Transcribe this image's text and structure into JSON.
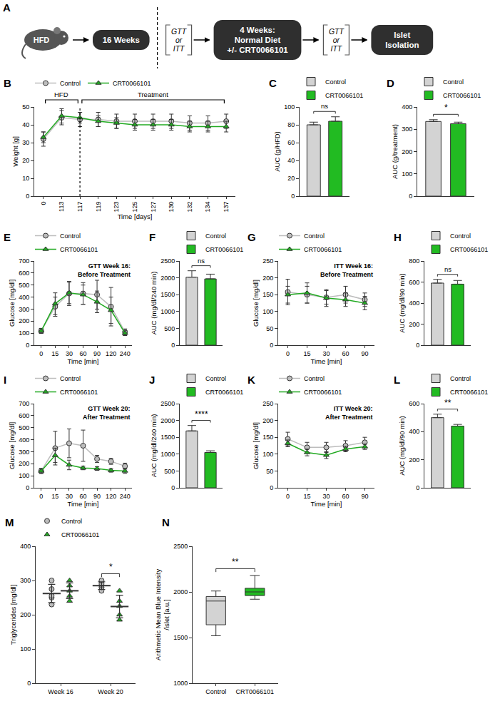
{
  "diagram": {
    "panel": "A",
    "items": [
      {
        "kind": "mouse",
        "text": "HFD"
      },
      {
        "kind": "box",
        "lines": [
          "16 Weeks"
        ]
      },
      {
        "kind": "divider"
      },
      {
        "kind": "test",
        "lines": [
          "GTT",
          "or",
          "ITT"
        ]
      },
      {
        "kind": "box",
        "lines": [
          "4 Weeks:",
          "Normal Diet",
          "+/- CRT0066101"
        ]
      },
      {
        "kind": "test",
        "lines": [
          "GTT",
          "or",
          "ITT"
        ]
      },
      {
        "kind": "box",
        "lines": [
          "Islet",
          "Isolation"
        ]
      }
    ]
  },
  "chart_data": [
    {
      "panel": "B",
      "type": "line",
      "x_title": "Time [days]",
      "y_title": "Weight [g]",
      "categories": [
        "0",
        "113",
        "117",
        "119",
        "123",
        "125",
        "127",
        "130",
        "132",
        "134",
        "137"
      ],
      "series": [
        {
          "name": "Control",
          "color": "#bdbdbd",
          "marker": "circle",
          "values": [
            32,
            44,
            43,
            43,
            42,
            42,
            42,
            42,
            41,
            41,
            42
          ],
          "errors": [
            4,
            4,
            4,
            4,
            4,
            4,
            4,
            4,
            4,
            4,
            4
          ]
        },
        {
          "name": "CRT0066101",
          "color": "#22aa22",
          "marker": "triangle",
          "values": [
            33,
            45,
            44,
            42,
            41,
            40,
            40,
            40,
            39,
            39,
            39
          ],
          "errors": [
            3,
            4,
            3,
            3,
            3,
            3,
            3,
            3,
            3,
            3,
            3
          ]
        }
      ],
      "periods": [
        {
          "label": "HFD",
          "from": "0",
          "to": "117"
        },
        {
          "label": "Treatment",
          "from": "117",
          "to": "137"
        }
      ],
      "divider": {
        "at": "117",
        "line_style": "dotted"
      },
      "ylim": [
        0,
        50
      ],
      "yticks": [
        0,
        10,
        20,
        30,
        40,
        50
      ],
      "grid": false,
      "legend": "top-left"
    },
    {
      "panel": "C",
      "type": "bar",
      "y_title": "AUC (g/HFD)",
      "series": [
        {
          "name": "Control",
          "color": "#d3d3d3",
          "values": [
            80
          ],
          "errors": [
            3
          ]
        },
        {
          "name": "CRT0066101",
          "color": "#22bb22",
          "values": [
            84
          ],
          "errors": [
            5
          ]
        }
      ],
      "significance": "ns",
      "ylim": [
        0,
        100
      ],
      "yticks": [
        0,
        20,
        40,
        60,
        80,
        100
      ],
      "grid": false,
      "legend": "top-left",
      "tick_labels": "y"
    },
    {
      "panel": "D",
      "type": "bar",
      "y_title": "AUC (g/treatment)",
      "series": [
        {
          "name": "Control",
          "color": "#d3d3d3",
          "values": [
            335
          ],
          "errors": [
            8
          ]
        },
        {
          "name": "CRT0066101",
          "color": "#22bb22",
          "values": [
            325
          ],
          "errors": [
            7
          ]
        }
      ],
      "significance": "*",
      "ylim": [
        0,
        400
      ],
      "yticks": [
        0,
        100,
        200,
        300,
        400
      ],
      "grid": false,
      "legend": "top-left",
      "tick_labels": "y"
    },
    {
      "panel": "E",
      "type": "line",
      "title": "GTT Week 16: Before Treatment",
      "x_title": "Time [min]",
      "y_title": "Glucose [mg/dl]",
      "categories": [
        "0",
        "15",
        "30",
        "60",
        "90",
        "120",
        "240"
      ],
      "series": [
        {
          "name": "Control",
          "color": "#bdbdbd",
          "marker": "circle",
          "values": [
            120,
            320,
            430,
            430,
            420,
            320,
            110
          ],
          "errors": [
            20,
            80,
            100,
            90,
            120,
            160,
            25
          ]
        },
        {
          "name": "CRT0066101",
          "color": "#22aa22",
          "marker": "triangle",
          "values": [
            118,
            345,
            435,
            420,
            360,
            290,
            100
          ],
          "errors": [
            20,
            90,
            90,
            80,
            90,
            110,
            20
          ]
        }
      ],
      "ylim": [
        0,
        700
      ],
      "yticks": [
        0,
        100,
        200,
        300,
        400,
        500,
        600,
        700
      ],
      "grid": false,
      "legend": "top-left"
    },
    {
      "panel": "F",
      "type": "bar",
      "y_title": "AUC (mg/dl/240 min)",
      "series": [
        {
          "name": "Control",
          "color": "#d3d3d3",
          "values": [
            2020
          ],
          "errors": [
            190
          ]
        },
        {
          "name": "CRT0066101",
          "color": "#22bb22",
          "values": [
            1970
          ],
          "errors": [
            140
          ]
        }
      ],
      "significance": "ns",
      "ylim": [
        0,
        2500
      ],
      "yticks": [
        0,
        500,
        1000,
        1500,
        2000,
        2500
      ],
      "grid": false,
      "legend": "top-left",
      "tick_labels": "y"
    },
    {
      "panel": "G",
      "type": "line",
      "title": "ITT Week 16: Before Treatment",
      "x_title": "Time [min]",
      "y_title": "Glucose [mg/dl]",
      "categories": [
        "0",
        "15",
        "30",
        "60",
        "90"
      ],
      "series": [
        {
          "name": "Control",
          "color": "#bdbdbd",
          "marker": "circle",
          "values": [
            158,
            150,
            142,
            150,
            135
          ],
          "errors": [
            38,
            25,
            20,
            25,
            20
          ]
        },
        {
          "name": "CRT0066101",
          "color": "#22aa22",
          "marker": "triangle",
          "values": [
            150,
            155,
            140,
            135,
            125
          ],
          "errors": [
            25,
            30,
            25,
            20,
            20
          ]
        }
      ],
      "ylim": [
        0,
        250
      ],
      "yticks": [
        0,
        50,
        100,
        150,
        200,
        250
      ],
      "grid": false,
      "legend": "top-left"
    },
    {
      "panel": "H",
      "type": "bar",
      "y_title": "AUC (mg/dl/90 min)",
      "series": [
        {
          "name": "Control",
          "color": "#d3d3d3",
          "values": [
            590
          ],
          "errors": [
            35
          ]
        },
        {
          "name": "CRT0066101",
          "color": "#22bb22",
          "values": [
            580
          ],
          "errors": [
            35
          ]
        }
      ],
      "significance": "ns",
      "ylim": [
        0,
        800
      ],
      "yticks": [
        0,
        200,
        400,
        600,
        800
      ],
      "grid": false,
      "legend": "top-left",
      "tick_labels": "y"
    },
    {
      "panel": "I",
      "type": "line",
      "title": "GTT Week 20: After Treatment",
      "x_title": "Time [min]",
      "y_title": "Glucose [mg/dl]",
      "categories": [
        "0",
        "15",
        "30",
        "60",
        "90",
        "120",
        "240"
      ],
      "series": [
        {
          "name": "Control",
          "color": "#bdbdbd",
          "marker": "circle",
          "values": [
            140,
            330,
            370,
            350,
            240,
            220,
            180
          ],
          "errors": [
            20,
            140,
            120,
            130,
            30,
            25,
            25
          ]
        },
        {
          "name": "CRT0066101",
          "color": "#22aa22",
          "marker": "triangle",
          "values": [
            140,
            270,
            190,
            165,
            160,
            145,
            140
          ],
          "errors": [
            20,
            60,
            40,
            15,
            15,
            15,
            20
          ]
        }
      ],
      "ylim": [
        0,
        700
      ],
      "yticks": [
        0,
        100,
        200,
        300,
        400,
        500,
        600,
        700
      ],
      "grid": false,
      "legend": "top-left"
    },
    {
      "panel": "J",
      "type": "bar",
      "y_title": "AUC (mg/dl/240 min)",
      "series": [
        {
          "name": "Control",
          "color": "#d3d3d3",
          "values": [
            1690
          ],
          "errors": [
            160
          ]
        },
        {
          "name": "CRT0066101",
          "color": "#22bb22",
          "values": [
            1050
          ],
          "errors": [
            50
          ]
        }
      ],
      "significance": "****",
      "ylim": [
        0,
        2500
      ],
      "yticks": [
        0,
        500,
        1000,
        1500,
        2000,
        2500
      ],
      "grid": false,
      "legend": "top-left",
      "tick_labels": "y"
    },
    {
      "panel": "K",
      "type": "line",
      "title": "ITT Week 20: After Treatment",
      "x_title": "Time [min]",
      "y_title": "Glucose [mg/dl]",
      "categories": [
        "0",
        "15",
        "30",
        "60",
        "90"
      ],
      "series": [
        {
          "name": "Control",
          "color": "#bdbdbd",
          "marker": "circle",
          "values": [
            145,
            120,
            120,
            125,
            135
          ],
          "errors": [
            20,
            15,
            15,
            15,
            15
          ]
        },
        {
          "name": "CRT0066101",
          "color": "#22aa22",
          "marker": "triangle",
          "values": [
            132,
            105,
            97,
            115,
            122
          ],
          "errors": [
            10,
            10,
            10,
            8,
            8
          ]
        }
      ],
      "ylim": [
        0,
        250
      ],
      "yticks": [
        0,
        50,
        100,
        150,
        200,
        250
      ],
      "grid": false,
      "legend": "top-left"
    },
    {
      "panel": "L",
      "type": "bar",
      "y_title": "AUC (mg/dl/90 min)",
      "series": [
        {
          "name": "Control",
          "color": "#d3d3d3",
          "values": [
            500
          ],
          "errors": [
            25
          ]
        },
        {
          "name": "CRT0066101",
          "color": "#22bb22",
          "values": [
            440
          ],
          "errors": [
            12
          ]
        }
      ],
      "significance": "**",
      "ylim": [
        0,
        600
      ],
      "yticks": [
        0,
        200,
        400,
        600
      ],
      "grid": false,
      "legend": "top-left",
      "tick_labels": "y"
    },
    {
      "panel": "M",
      "type": "scatter",
      "y_title": "Triglycerides [mg/dl]",
      "categories": [
        "Week 16",
        "Week 20"
      ],
      "series": [
        {
          "name": "Control",
          "color": "#bdbdbd",
          "marker": "circle",
          "values": [
            [
              230,
              250,
              255,
              275,
              300
            ],
            [
              270,
              280,
              285,
              290,
              300
            ]
          ],
          "means": [
            262,
            285
          ],
          "errors": [
            27,
            11
          ]
        },
        {
          "name": "CRT0066101",
          "color": "#22aa22",
          "marker": "triangle",
          "values": [
            [
              240,
              255,
              270,
              285,
              300
            ],
            [
              185,
              200,
              225,
              240,
              270
            ]
          ],
          "means": [
            270,
            224
          ],
          "errors": [
            23,
            33
          ]
        }
      ],
      "significance": {
        "category": "Week 20",
        "text": "*"
      },
      "ylim": [
        0,
        400
      ],
      "yticks": [
        0,
        100,
        200,
        300,
        400
      ],
      "grid": false,
      "legend": "top-left"
    },
    {
      "panel": "N",
      "type": "box",
      "y_title": "Arithmetic Mean Blue Intensity /islet [a.u.]",
      "categories": [
        "Control",
        "CRT0066101"
      ],
      "boxes": [
        {
          "color": "#d3d3d3",
          "min": 1520,
          "q1": 1640,
          "median": 1900,
          "q3": 1950,
          "max": 2010
        },
        {
          "color": "#22bb22",
          "min": 1920,
          "q1": 1960,
          "median": 2000,
          "q3": 2040,
          "max": 2180
        }
      ],
      "significance": "**",
      "ylim": [
        1000,
        2500
      ],
      "yticks": [
        1000,
        1500,
        2000,
        2500
      ],
      "grid": false
    }
  ]
}
